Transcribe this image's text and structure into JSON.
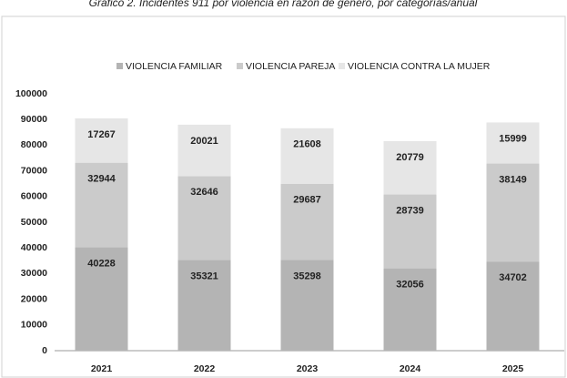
{
  "chart_data": {
    "type": "bar",
    "stacked": true,
    "title": "Gráfico 2. Incidentes 911 por violencia en razón de género, por categorías/anual",
    "categories": [
      "2021",
      "2022",
      "2023",
      "2024",
      "2025"
    ],
    "series": [
      {
        "name": "VIOLENCIA FAMILIAR",
        "color": "#b4b4b4",
        "values": [
          40228,
          35321,
          35298,
          32056,
          34702
        ]
      },
      {
        "name": "VIOLENCIA PAREJA",
        "color": "#cbcbcb",
        "values": [
          32944,
          32646,
          29687,
          28739,
          38149
        ]
      },
      {
        "name": "VIOLENCIA CONTRA LA MUJER",
        "color": "#e6e6e6",
        "values": [
          17267,
          20021,
          21608,
          20779,
          15999
        ]
      }
    ],
    "ylim": [
      0,
      100000
    ],
    "yticks": [
      0,
      10000,
      20000,
      30000,
      40000,
      50000,
      60000,
      70000,
      80000,
      90000,
      100000
    ],
    "grid": false,
    "legend": "top"
  }
}
